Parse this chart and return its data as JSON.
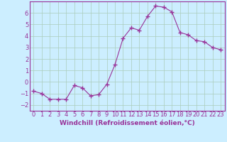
{
  "x": [
    0,
    1,
    2,
    3,
    4,
    5,
    6,
    7,
    8,
    9,
    10,
    11,
    12,
    13,
    14,
    15,
    16,
    17,
    18,
    19,
    20,
    21,
    22,
    23
  ],
  "y": [
    -0.8,
    -1.0,
    -1.5,
    -1.5,
    -1.5,
    -0.3,
    -0.5,
    -1.2,
    -1.1,
    -0.2,
    1.5,
    3.8,
    4.7,
    4.5,
    5.7,
    6.6,
    6.5,
    6.1,
    4.3,
    4.1,
    3.6,
    3.5,
    3.0,
    2.8
  ],
  "line_color": "#993399",
  "marker": "D",
  "marker_size": 2,
  "background_color": "#cceeff",
  "grid_color": "#aaccbb",
  "xlabel": "Windchill (Refroidissement éolien,°C)",
  "xlabel_fontsize": 6.5,
  "tick_fontsize": 6,
  "xlim": [
    -0.5,
    23.5
  ],
  "ylim": [
    -2.5,
    7.0
  ],
  "yticks": [
    -2,
    -1,
    0,
    1,
    2,
    3,
    4,
    5,
    6
  ],
  "xticks": [
    0,
    1,
    2,
    3,
    4,
    5,
    6,
    7,
    8,
    9,
    10,
    11,
    12,
    13,
    14,
    15,
    16,
    17,
    18,
    19,
    20,
    21,
    22,
    23
  ]
}
